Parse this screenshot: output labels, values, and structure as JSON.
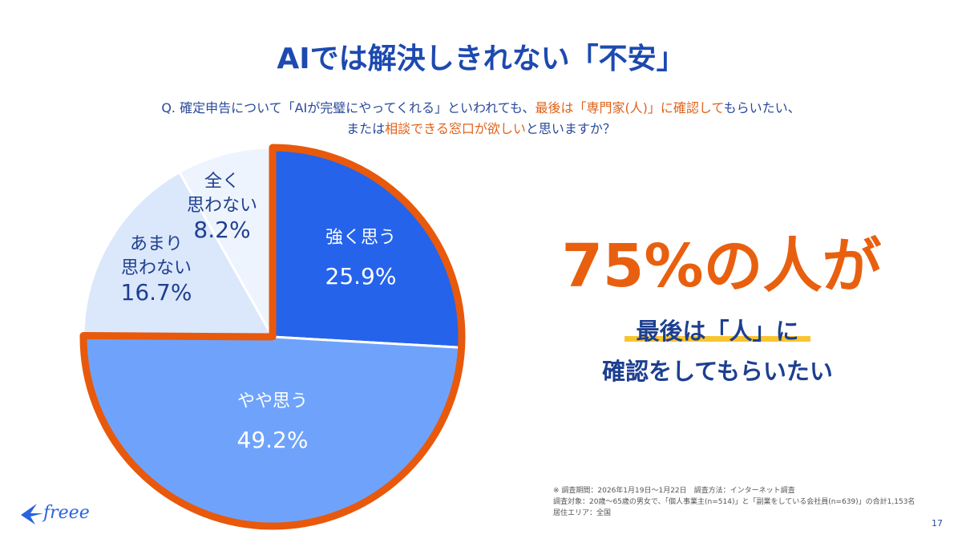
{
  "title": "AIでは解決しきれない「不安」",
  "question": {
    "line1": [
      {
        "t": "Q. 確定申告について「AIが完璧にやってくれる」といわれても、",
        "hl": false
      },
      {
        "t": "最後は「専門家(人)」に確認して",
        "hl": true
      },
      {
        "t": "もらいたい、",
        "hl": false
      }
    ],
    "line2": [
      {
        "t": "または",
        "hl": false
      },
      {
        "t": "相談できる窓口が欲しい",
        "hl": true
      },
      {
        "t": "と思いますか？",
        "hl": false
      }
    ]
  },
  "chart_data": {
    "type": "pie",
    "start": "top",
    "direction": "clockwise",
    "slices": [
      {
        "label": "強く思う",
        "value": 25.9,
        "display": "25.9%",
        "color": "#2563eb",
        "text_color": "#ffffff"
      },
      {
        "label": "やや思う",
        "value": 49.2,
        "display": "49.2%",
        "color": "#6fa3fb",
        "text_color": "#ffffff"
      },
      {
        "label": "あまり思わない",
        "value": 16.7,
        "display": "16.7%",
        "color": "#dbe7fb",
        "text_color": "#1f3f8f"
      },
      {
        "label": "全く思わない",
        "value": 8.2,
        "display": "8.2%",
        "color": "#eef4fd",
        "text_color": "#1f3f8f"
      }
    ],
    "highlight": {
      "slices": [
        0,
        1
      ],
      "color": "#e8590c"
    }
  },
  "labels": [
    {
      "l1": "強く思う",
      "l2": "",
      "pct": "25.9%"
    },
    {
      "l1": "やや思う",
      "l2": "",
      "pct": "49.2%"
    },
    {
      "l1": "あまり",
      "l2": "思わない",
      "pct": "16.7%"
    },
    {
      "l1": "全く",
      "l2": "思わない",
      "pct": "8.2%"
    }
  ],
  "callout": {
    "big": "75%の人が",
    "line1": "最後は「人」に",
    "line2": "確認をしてもらいたい"
  },
  "notes": [
    "※ 調査期間：2026年1月19日～1月22日　調査方法：インターネット調査",
    "調査対象：20歳～65歳の男女で、「個人事業主(n=514)」と「副業をしている会社員(n=639)」の合計1,153名",
    "居住エリア：全国"
  ],
  "page_number": "17",
  "logo": "freee"
}
